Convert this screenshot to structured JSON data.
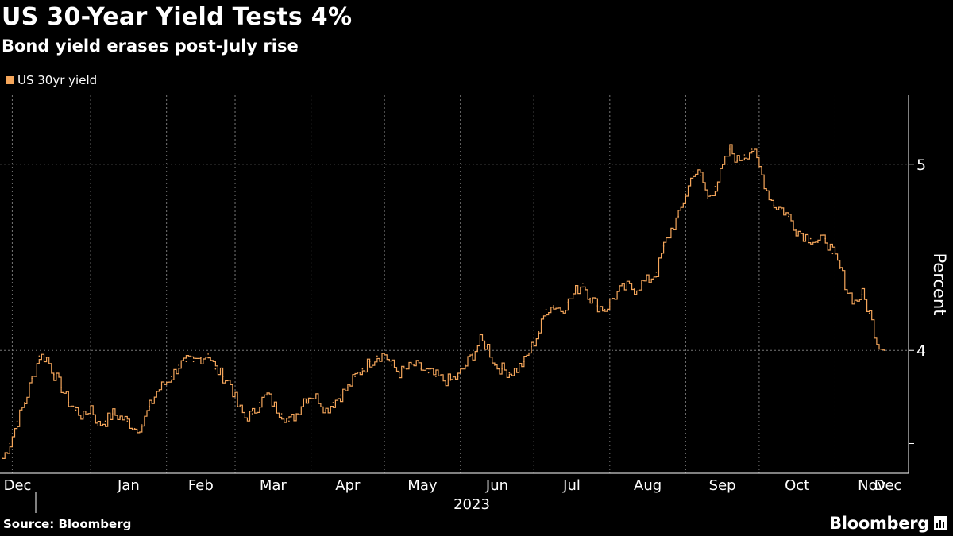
{
  "header": {
    "title": "US 30-Year Yield Tests 4%",
    "subtitle": "Bond yield erases post-July rise"
  },
  "footer": {
    "source": "Source: Bloomberg",
    "brand": "Bloomberg"
  },
  "colors": {
    "series": "#f5a65b",
    "background": "#000000",
    "grid": "#777777",
    "text": "#ffffff"
  },
  "chart_data": {
    "type": "line",
    "title": "US 30-Year Yield Tests 4%",
    "subtitle": "Bond yield erases post-July rise",
    "xlabel": "2023",
    "ylabel": "Percent",
    "ylim": [
      3.34,
      5.37
    ],
    "yticks": [
      4,
      5
    ],
    "xticks": [
      "Dec",
      "Jan",
      "Feb",
      "Mar",
      "Apr",
      "May",
      "Jun",
      "Jul",
      "Aug",
      "Sep",
      "Oct",
      "Nov",
      "Dec"
    ],
    "grid": true,
    "legend_position": "top-left",
    "series": [
      {
        "name": "US 30yr yield",
        "x_unit": "days since 2022-12-01",
        "points": [
          [
            -5,
            3.42
          ],
          [
            -2,
            3.5
          ],
          [
            1,
            3.62
          ],
          [
            4,
            3.72
          ],
          [
            7,
            3.85
          ],
          [
            10,
            3.97
          ],
          [
            13,
            3.96
          ],
          [
            16,
            3.87
          ],
          [
            19,
            3.8
          ],
          [
            22,
            3.72
          ],
          [
            25,
            3.68
          ],
          [
            28,
            3.64
          ],
          [
            31,
            3.7
          ],
          [
            34,
            3.6
          ],
          [
            37,
            3.62
          ],
          [
            40,
            3.66
          ],
          [
            43,
            3.64
          ],
          [
            46,
            3.62
          ],
          [
            49,
            3.58
          ],
          [
            52,
            3.6
          ],
          [
            55,
            3.7
          ],
          [
            58,
            3.78
          ],
          [
            61,
            3.82
          ],
          [
            64,
            3.86
          ],
          [
            67,
            3.92
          ],
          [
            70,
            3.94
          ],
          [
            73,
            3.94
          ],
          [
            76,
            3.96
          ],
          [
            79,
            3.98
          ],
          [
            82,
            3.9
          ],
          [
            85,
            3.86
          ],
          [
            88,
            3.82
          ],
          [
            91,
            3.7
          ],
          [
            94,
            3.64
          ],
          [
            97,
            3.66
          ],
          [
            100,
            3.72
          ],
          [
            103,
            3.76
          ],
          [
            106,
            3.7
          ],
          [
            109,
            3.66
          ],
          [
            112,
            3.62
          ],
          [
            115,
            3.66
          ],
          [
            118,
            3.74
          ],
          [
            121,
            3.76
          ],
          [
            124,
            3.74
          ],
          [
            127,
            3.68
          ],
          [
            130,
            3.72
          ],
          [
            133,
            3.76
          ],
          [
            136,
            3.8
          ],
          [
            139,
            3.86
          ],
          [
            142,
            3.9
          ],
          [
            145,
            3.94
          ],
          [
            148,
            3.97
          ],
          [
            151,
            3.98
          ],
          [
            154,
            3.92
          ],
          [
            157,
            3.88
          ],
          [
            160,
            3.9
          ],
          [
            163,
            3.92
          ],
          [
            166,
            3.9
          ],
          [
            169,
            3.88
          ],
          [
            172,
            3.86
          ],
          [
            175,
            3.84
          ],
          [
            178,
            3.84
          ],
          [
            181,
            3.86
          ],
          [
            184,
            3.92
          ],
          [
            187,
            3.98
          ],
          [
            190,
            4.05
          ],
          [
            193,
            4.02
          ],
          [
            196,
            3.92
          ],
          [
            199,
            3.9
          ],
          [
            202,
            3.88
          ],
          [
            205,
            3.9
          ],
          [
            208,
            3.94
          ],
          [
            211,
            4.02
          ],
          [
            214,
            4.1
          ],
          [
            217,
            4.22
          ],
          [
            220,
            4.24
          ],
          [
            223,
            4.22
          ],
          [
            226,
            4.26
          ],
          [
            229,
            4.32
          ],
          [
            232,
            4.36
          ],
          [
            235,
            4.28
          ],
          [
            238,
            4.24
          ],
          [
            241,
            4.22
          ],
          [
            244,
            4.28
          ],
          [
            247,
            4.32
          ],
          [
            250,
            4.34
          ],
          [
            253,
            4.33
          ],
          [
            256,
            4.36
          ],
          [
            259,
            4.38
          ],
          [
            262,
            4.42
          ],
          [
            265,
            4.56
          ],
          [
            268,
            4.65
          ],
          [
            271,
            4.72
          ],
          [
            274,
            4.84
          ],
          [
            277,
            4.96
          ],
          [
            280,
            4.94
          ],
          [
            283,
            4.82
          ],
          [
            286,
            4.88
          ],
          [
            289,
            4.98
          ],
          [
            292,
            5.08
          ],
          [
            295,
            5.02
          ],
          [
            298,
            5.05
          ],
          [
            301,
            5.08
          ],
          [
            304,
            4.98
          ],
          [
            307,
            4.86
          ],
          [
            310,
            4.78
          ],
          [
            313,
            4.76
          ],
          [
            316,
            4.72
          ],
          [
            319,
            4.65
          ],
          [
            322,
            4.62
          ],
          [
            325,
            4.6
          ],
          [
            328,
            4.58
          ],
          [
            331,
            4.6
          ],
          [
            334,
            4.52
          ],
          [
            337,
            4.44
          ],
          [
            340,
            4.32
          ],
          [
            343,
            4.26
          ],
          [
            346,
            4.3
          ],
          [
            349,
            4.2
          ],
          [
            352,
            4.05
          ],
          [
            355,
            4.0
          ]
        ]
      }
    ]
  }
}
